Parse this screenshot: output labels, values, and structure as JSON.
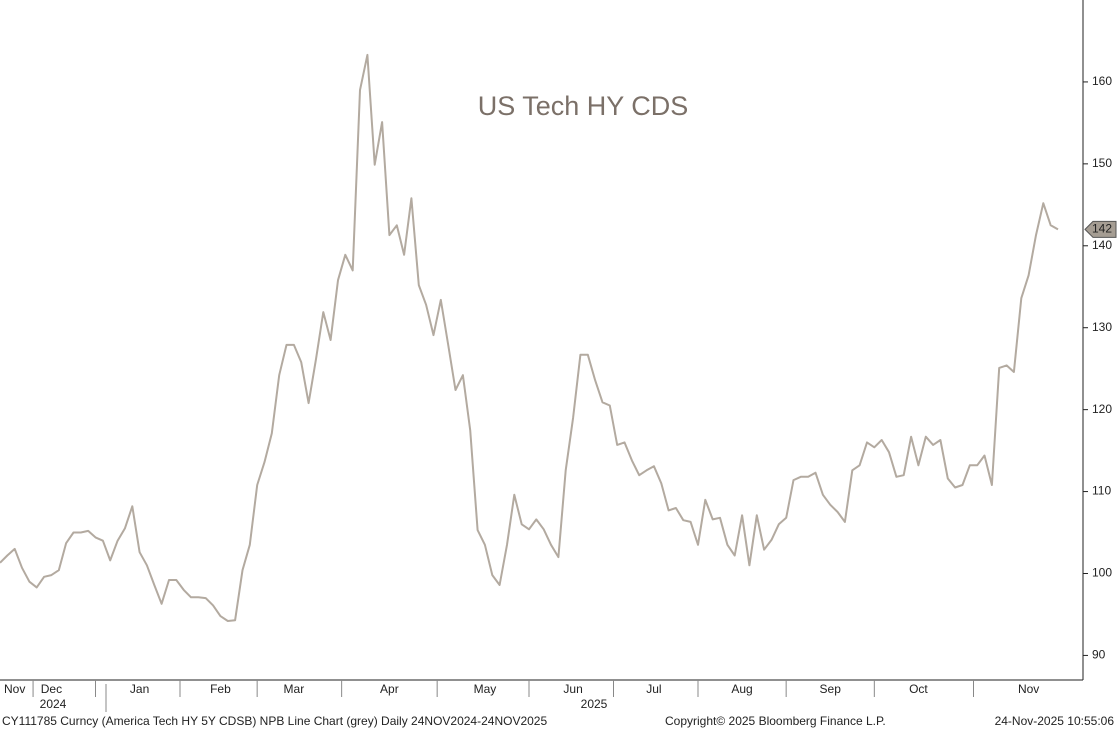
{
  "chart_data": {
    "type": "line",
    "title": "US Tech HY CDS",
    "categories": [
      null,
      null,
      "Nov",
      null,
      null,
      null,
      null,
      "Dec",
      null,
      null,
      null,
      null,
      null,
      null,
      null,
      null,
      null,
      null,
      null,
      "Jan",
      null,
      null,
      null,
      null,
      null,
      null,
      null,
      null,
      null,
      null,
      "Feb",
      null,
      null,
      null,
      null,
      null,
      null,
      null,
      null,
      null,
      "Mar",
      null,
      null,
      null,
      null,
      null,
      null,
      null,
      null,
      null,
      null,
      null,
      null,
      "Apr",
      null,
      null,
      null,
      null,
      null,
      null,
      null,
      null,
      null,
      null,
      null,
      null,
      "May",
      null,
      null,
      null,
      null,
      null,
      null,
      null,
      null,
      null,
      null,
      null,
      "Jun",
      null,
      null,
      null,
      null,
      null,
      null,
      null,
      null,
      null,
      null,
      "Jul",
      null,
      null,
      null,
      null,
      null,
      null,
      null,
      null,
      null,
      null,
      null,
      "Aug",
      null,
      null,
      null,
      null,
      null,
      null,
      null,
      null,
      null,
      null,
      null,
      "Sep",
      null,
      null,
      null,
      null,
      null,
      null,
      null,
      null,
      null,
      null,
      null,
      "Oct",
      null,
      null,
      null,
      null,
      null,
      null,
      null,
      null,
      null,
      null,
      null,
      null,
      null,
      null,
      "Nov",
      null,
      null,
      null,
      null
    ],
    "series": [
      {
        "name": "CY111785 Curncy",
        "color": "#b3aaa0",
        "values": [
          101.3,
          102.2,
          103,
          100.7,
          99,
          98.3,
          99.6,
          99.8,
          100.4,
          103.7,
          105,
          105,
          105.2,
          104.4,
          104,
          101.6,
          104,
          105.5,
          108.2,
          102.6,
          101,
          98.6,
          96.3,
          99.2,
          99.2,
          98,
          97.1,
          97.1,
          97,
          96.1,
          94.8,
          94.2,
          94.3,
          100.4,
          103.5,
          110.8,
          113.6,
          117.1,
          124.2,
          127.9,
          127.9,
          125.8,
          120.8,
          126.1,
          131.9,
          128.5,
          135.8,
          138.9,
          137,
          159,
          163.3,
          149.9,
          155.1,
          141.3,
          142.5,
          138.9,
          145.8,
          135.2,
          132.8,
          129.1,
          133.4,
          127.9,
          122.4,
          124.2,
          117.5,
          105.3,
          103.5,
          99.8,
          98.6,
          103.5,
          109.6,
          106,
          105.4,
          106.6,
          105.4,
          103.5,
          102,
          112.6,
          119,
          126.7,
          126.7,
          123.6,
          120.9,
          120.5,
          115.7,
          116,
          113.8,
          112,
          112.6,
          113.1,
          111,
          107.7,
          108,
          106.5,
          106.3,
          103.5,
          109,
          106.6,
          106.8,
          103.5,
          102.2,
          107.1,
          101,
          107.1,
          102.9,
          104.1,
          106,
          106.8,
          111.4,
          111.8,
          111.8,
          112.3,
          109.6,
          108.4,
          107.5,
          106.3,
          112.6,
          113.2,
          116,
          115.4,
          116.3,
          114.8,
          111.8,
          112,
          116.7,
          113.2,
          116.7,
          115.7,
          116.3,
          111.6,
          110.5,
          110.8,
          113.2,
          113.2,
          114.4,
          110.8,
          125.1,
          125.4,
          124.6,
          133.6,
          136.4,
          141.3,
          145.2,
          142.5,
          142
        ]
      }
    ],
    "last_value": 142,
    "year_labels": [
      "2024",
      "2025"
    ],
    "ylim": [
      87,
      170
    ],
    "yticks": [
      90,
      100,
      110,
      120,
      130,
      140,
      150,
      160
    ],
    "grid": false,
    "footer_left": "CY111785 Curncy (America Tech HY 5Y CDSB) NPB Line Chart (grey) Daily 24NOV2024-24NOV2025",
    "footer_center": "Copyright© 2025 Bloomberg Finance L.P.",
    "footer_right": "24-Nov-2025 10:55:06"
  }
}
